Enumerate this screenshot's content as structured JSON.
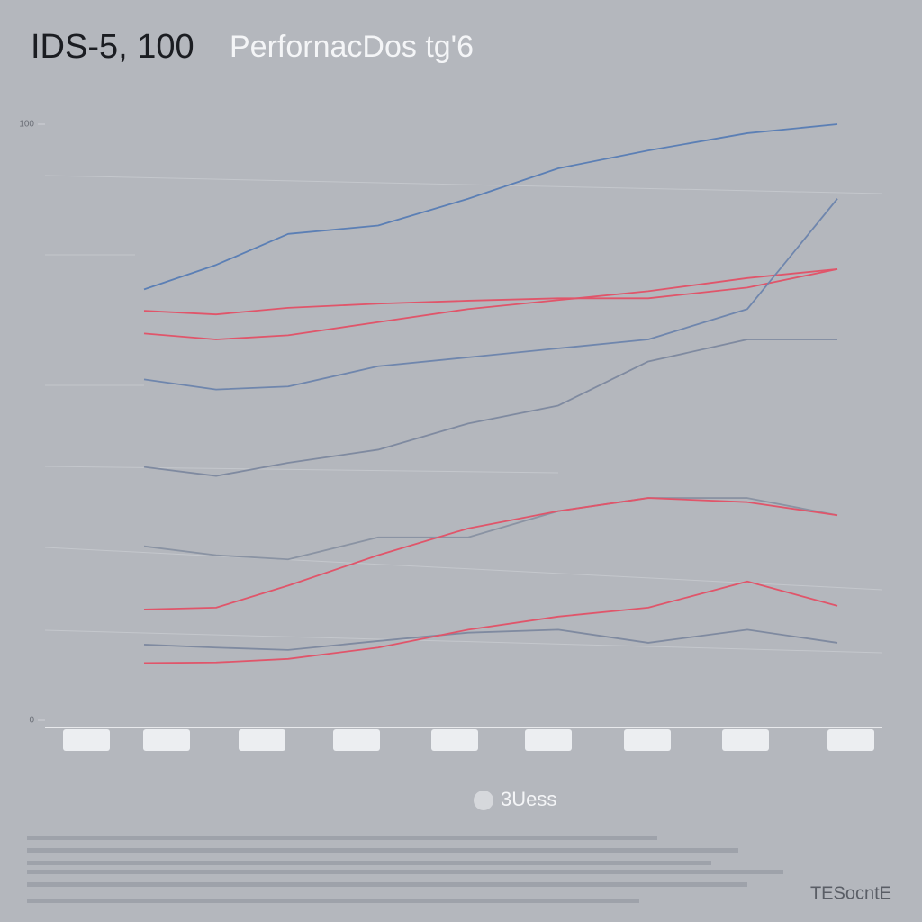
{
  "chart_data": {
    "type": "line",
    "title": "IDS-5, 100",
    "subtitle": "PerfornacDos tg'6",
    "legend_label": "3Uess",
    "corner_label": "TESocntE",
    "categories": [
      null,
      null,
      null,
      null,
      null,
      null,
      null,
      null,
      null
    ],
    "ylim": [
      0,
      100
    ],
    "yticks": [
      0,
      100
    ],
    "grid": false,
    "series": [
      {
        "color": "#5b7fb5",
        "values": [
          72.3,
          76.4,
          81.6,
          83,
          87.5,
          92.6,
          95.6,
          98.5,
          100
        ]
      },
      {
        "color": "#e0556a",
        "values": [
          68.7,
          68.1,
          69.2,
          69.9,
          70.4,
          70.8,
          70.8,
          72.6,
          75.7
        ]
      },
      {
        "color": "#e0556a",
        "values": [
          64.9,
          63.9,
          64.6,
          66.8,
          69,
          70.5,
          72,
          74.2,
          75.7
        ]
      },
      {
        "color": "#6f86ad",
        "values": [
          57.2,
          55.5,
          56,
          59.4,
          60.9,
          62.4,
          63.9,
          69,
          87.5
        ]
      },
      {
        "color": "#7f8aa0",
        "values": [
          42.5,
          41,
          43.2,
          45.4,
          49.8,
          52.8,
          60.2,
          63.9,
          63.9
        ]
      },
      {
        "color": "#8a93a3",
        "values": [
          29.2,
          27.7,
          27,
          30.7,
          30.7,
          35.1,
          37.3,
          37.3,
          34.4
        ]
      },
      {
        "color": "#e0556a",
        "values": [
          18.6,
          18.9,
          22.6,
          27.7,
          32.2,
          35.1,
          37.3,
          36.6,
          34.4
        ]
      },
      {
        "color": "#7f8aa0",
        "values": [
          12.7,
          12.2,
          11.8,
          13.3,
          14.7,
          15.2,
          13,
          15.2,
          13
        ]
      },
      {
        "color": "#e0556a",
        "values": [
          9.6,
          9.7,
          10.3,
          12.2,
          15.2,
          17.4,
          18.9,
          23.3,
          19.2
        ]
      }
    ]
  }
}
